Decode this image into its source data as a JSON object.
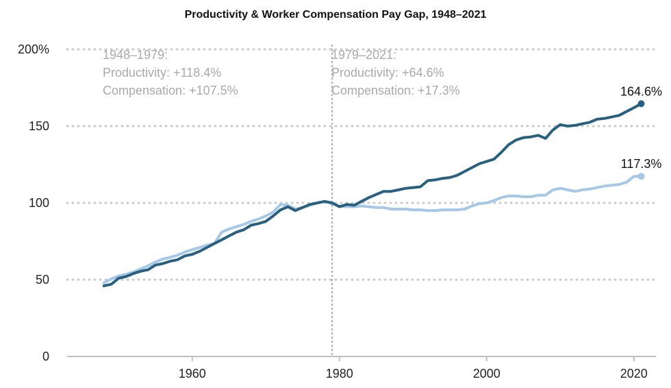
{
  "chart_data": {
    "type": "line",
    "title": "Productivity & Worker Compensation Pay Gap, 1948–2021",
    "xlabel": "",
    "ylabel": "",
    "xlim": [
      1943,
      2023
    ],
    "ylim": [
      0,
      200
    ],
    "x_ticks": [
      1960,
      1980,
      2000,
      2020
    ],
    "x_tick_labels": [
      "1960",
      "1980",
      "2000",
      "2020"
    ],
    "y_ticks": [
      0,
      50,
      100,
      150,
      200
    ],
    "y_tick_labels": [
      "0",
      "50",
      "100",
      "150",
      "200%"
    ],
    "grid": "horizontal dotted",
    "divider_year": 1979,
    "annotations": [
      {
        "period": "1948–1979:",
        "productivity": "Productivity: +118.4%",
        "compensation": "Compensation: +107.5%"
      },
      {
        "period": "1979–2021:",
        "productivity": "Productivity: +64.6%",
        "compensation": "Compensation: +17.3%"
      }
    ],
    "x": [
      1948,
      1949,
      1950,
      1951,
      1952,
      1953,
      1954,
      1955,
      1956,
      1957,
      1958,
      1959,
      1960,
      1961,
      1962,
      1963,
      1964,
      1965,
      1966,
      1967,
      1968,
      1969,
      1970,
      1971,
      1972,
      1973,
      1974,
      1975,
      1976,
      1977,
      1978,
      1979,
      1980,
      1981,
      1982,
      1983,
      1984,
      1985,
      1986,
      1987,
      1988,
      1989,
      1990,
      1991,
      1992,
      1993,
      1994,
      1995,
      1996,
      1997,
      1998,
      1999,
      2000,
      2001,
      2002,
      2003,
      2004,
      2005,
      2006,
      2007,
      2008,
      2009,
      2010,
      2011,
      2012,
      2013,
      2014,
      2015,
      2016,
      2017,
      2018,
      2019,
      2020,
      2021
    ],
    "series": [
      {
        "name": "Productivity",
        "color": "#2a607f",
        "end_label": "164.6%",
        "values": [
          46,
          47,
          51,
          52,
          54,
          55.5,
          56.5,
          59.5,
          60.5,
          62,
          63,
          65.5,
          66.5,
          68.5,
          71,
          73.5,
          76,
          78.5,
          81,
          82.5,
          85.5,
          86.5,
          88,
          91.5,
          95.5,
          97.5,
          95,
          97,
          99,
          100,
          101,
          100,
          97.5,
          99,
          98.5,
          101,
          103.5,
          105.5,
          107.5,
          107.5,
          108.5,
          109.5,
          110,
          110.5,
          114.5,
          115,
          116,
          116.5,
          118,
          120.5,
          123,
          125.5,
          127,
          128.5,
          133,
          138,
          141,
          142.5,
          143,
          144,
          142,
          147.5,
          151,
          150,
          150.5,
          151.5,
          152.5,
          154.5,
          155,
          156,
          157,
          159.5,
          162,
          164.6
        ]
      },
      {
        "name": "Compensation",
        "color": "#a6c8e8",
        "end_label": "117.3%",
        "values": [
          48,
          50.5,
          52.5,
          53.5,
          55,
          57,
          59,
          61.5,
          63.5,
          64.5,
          66,
          68,
          69.5,
          71,
          72.5,
          73.5,
          81,
          83,
          84.5,
          86,
          88,
          89.5,
          91.5,
          94,
          99,
          98.5,
          96,
          97,
          98.5,
          100,
          101,
          99.5,
          98,
          97.5,
          97.5,
          98,
          97.5,
          97,
          97,
          96,
          96,
          96,
          95.5,
          95.5,
          95,
          95,
          95.5,
          95.5,
          95.5,
          96,
          98,
          99.5,
          100,
          101.5,
          103.5,
          104.5,
          104.5,
          104,
          104,
          105,
          105,
          108.5,
          109.5,
          108.5,
          107.5,
          108.5,
          109,
          110,
          111,
          111.5,
          112,
          113.5,
          117.3,
          117.3
        ]
      }
    ]
  }
}
